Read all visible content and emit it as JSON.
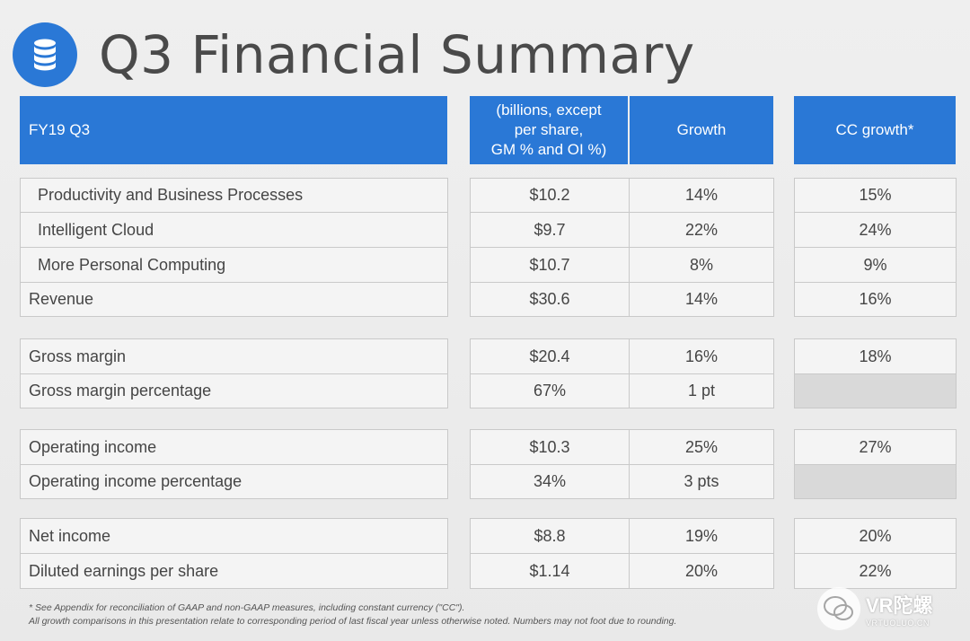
{
  "title": "Q3 Financial Summary",
  "icons": {
    "logo": "database-icon",
    "watermark": "wechat-icon"
  },
  "colors": {
    "accent": "#2a78d6",
    "cell_bg": "#f4f4f4",
    "blank_bg": "#d9d9d9"
  },
  "header": {
    "label": "FY19 Q3",
    "col1": "(billions, except\nper share,\nGM % and OI %)",
    "col2": "Growth",
    "col3": "CC growth*"
  },
  "rows": [
    {
      "label": "Productivity and Business Processes",
      "v1": "$10.2",
      "v2": "14%",
      "v3": "15%"
    },
    {
      "label": "Intelligent Cloud",
      "v1": "$9.7",
      "v2": "22%",
      "v3": "24%"
    },
    {
      "label": "More Personal Computing",
      "v1": "$10.7",
      "v2": "8%",
      "v3": "9%"
    },
    {
      "label": "Revenue",
      "v1": "$30.6",
      "v2": "14%",
      "v3": "16%"
    },
    {
      "label": "Gross margin",
      "v1": "$20.4",
      "v2": "16%",
      "v3": "18%"
    },
    {
      "label": "Gross margin percentage",
      "v1": "67%",
      "v2": "1 pt",
      "v3": ""
    },
    {
      "label": "Operating income",
      "v1": "$10.3",
      "v2": "25%",
      "v3": "27%"
    },
    {
      "label": "Operating income percentage",
      "v1": "34%",
      "v2": "3 pts",
      "v3": ""
    },
    {
      "label": "Net income",
      "v1": "$8.8",
      "v2": "19%",
      "v3": "20%"
    },
    {
      "label": "Diluted earnings per share",
      "v1": "$1.14",
      "v2": "20%",
      "v3": "22%"
    }
  ],
  "footnotes": {
    "line1": "* See Appendix for reconciliation of GAAP and non-GAAP measures, including constant currency (\"CC\").",
    "line2": "All growth comparisons in this presentation relate to corresponding period of last fiscal year unless otherwise noted. Numbers may not foot due to rounding."
  },
  "watermark": {
    "main": "VR陀螺",
    "sub": "VRTUOLUO.CN"
  }
}
